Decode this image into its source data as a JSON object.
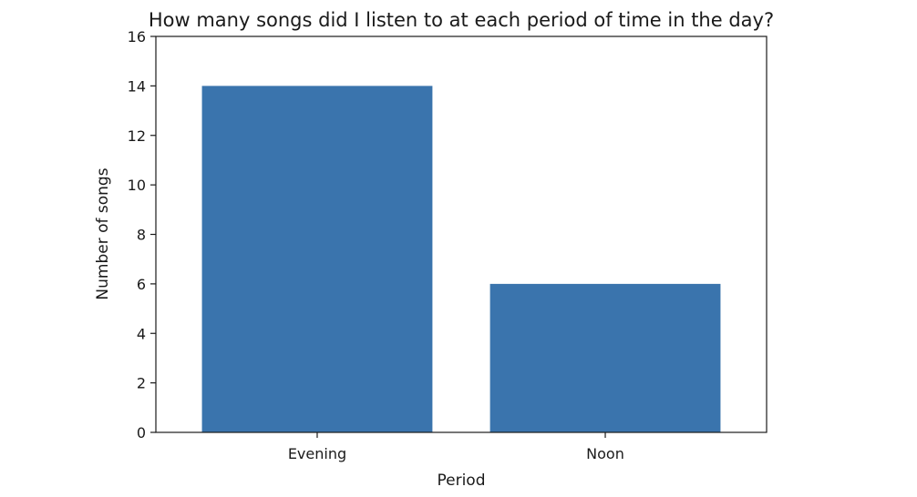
{
  "chart_data": {
    "type": "bar",
    "title": "How many songs did I listen to at each period of time in the day?",
    "xlabel": "Period",
    "ylabel": "Number of songs",
    "categories": [
      "Evening",
      "Noon"
    ],
    "values": [
      14,
      6
    ],
    "ylim": [
      0,
      16
    ],
    "yticks": [
      0,
      2,
      4,
      6,
      8,
      10,
      12,
      14,
      16
    ],
    "bar_color": "#3a74ad",
    "grid": false,
    "legend": "none"
  }
}
